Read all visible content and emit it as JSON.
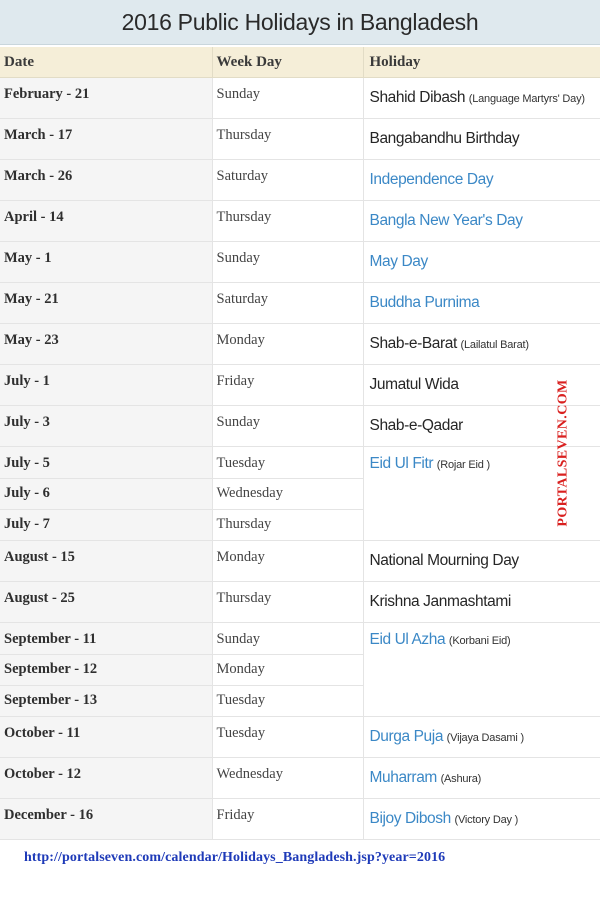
{
  "title": "2016 Public Holidays in Bangladesh",
  "table": {
    "headers": [
      "Date",
      "Week Day",
      "Holiday"
    ],
    "rows": [
      {
        "date": "February - 21",
        "weekday": "Sunday",
        "holiday": "Shahid Dibash",
        "note": "(Language Martyrs' Day)",
        "style": "dark"
      },
      {
        "date": "March - 17",
        "weekday": "Thursday",
        "holiday": "Bangabandhu Birthday",
        "note": "",
        "style": "dark"
      },
      {
        "date": "March - 26",
        "weekday": "Saturday",
        "holiday": "Independence Day",
        "note": "",
        "style": "blue"
      },
      {
        "date": "April - 14",
        "weekday": "Thursday",
        "holiday": "Bangla New Year's Day",
        "note": "",
        "style": "blue"
      },
      {
        "date": "May - 1",
        "weekday": "Sunday",
        "holiday": "May Day",
        "note": "",
        "style": "blue"
      },
      {
        "date": "May - 21",
        "weekday": "Saturday",
        "holiday": "Buddha Purnima",
        "note": "",
        "style": "blue"
      },
      {
        "date": "May - 23",
        "weekday": "Monday",
        "holiday": "Shab-e-Barat",
        "note": "(Lailatul Barat)",
        "style": "dark"
      },
      {
        "date": "July - 1",
        "weekday": "Friday",
        "holiday": "Jumatul Wida",
        "note": "",
        "style": "dark"
      },
      {
        "date": "July - 3",
        "weekday": "Sunday",
        "holiday": "Shab-e-Qadar",
        "note": "",
        "style": "dark"
      },
      {
        "date": "July - 5",
        "weekday": "Tuesday",
        "holiday": "Eid Ul Fitr",
        "note": "(Rojar Eid )",
        "style": "blue",
        "rowspan": 3
      },
      {
        "date": "July - 6",
        "weekday": "Wednesday",
        "sub": true
      },
      {
        "date": "July - 7",
        "weekday": "Thursday",
        "sub": true
      },
      {
        "date": "August - 15",
        "weekday": "Monday",
        "holiday": "National Mourning Day",
        "note": "",
        "style": "dark"
      },
      {
        "date": "August - 25",
        "weekday": "Thursday",
        "holiday": "Krishna Janmashtami",
        "note": "",
        "style": "dark"
      },
      {
        "date": "September - 11",
        "weekday": "Sunday",
        "holiday": "Eid Ul Azha",
        "note": "(Korbani Eid)",
        "style": "blue",
        "rowspan": 3
      },
      {
        "date": "September - 12",
        "weekday": "Monday",
        "sub": true
      },
      {
        "date": "September - 13",
        "weekday": "Tuesday",
        "sub": true
      },
      {
        "date": "October - 11",
        "weekday": "Tuesday",
        "holiday": "Durga Puja",
        "note": "(Vijaya Dasami )",
        "style": "blue"
      },
      {
        "date": "October - 12",
        "weekday": "Wednesday",
        "holiday": "Muharram",
        "note": "(Ashura)",
        "style": "blue"
      },
      {
        "date": "December - 16",
        "weekday": "Friday",
        "holiday": "Bijoy Dibosh",
        "note": "(Victory Day )",
        "style": "blue"
      }
    ]
  },
  "watermark": "PORTALSEVEN.COM",
  "footer_url": "http://portalseven.com/calendar/Holidays_Bangladesh.jsp?year=2016",
  "colors": {
    "accent_blue": "#3b88c6",
    "header_bg": "#f5eed8",
    "title_bg": "#dfe9ee",
    "watermark_red": "#d9201f",
    "url_blue": "#1e3ab8"
  }
}
